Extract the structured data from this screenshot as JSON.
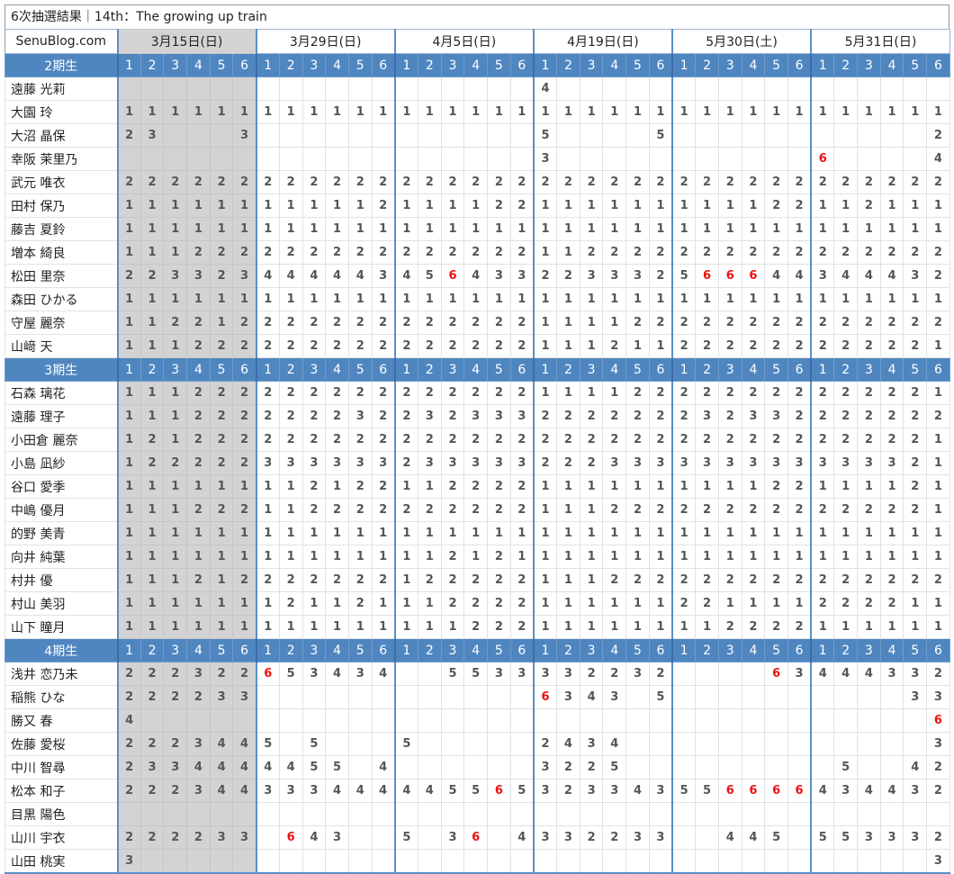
{
  "title": "6次抽選結果｜14th：The growing up train",
  "site": "SenuBlog.com",
  "slot_labels": [
    "1",
    "2",
    "3",
    "4",
    "5",
    "6"
  ],
  "dates": [
    "3月15日(日)",
    "3月29日(日)",
    "4月5日(日)",
    "4月19日(日)",
    "5月30日(土)",
    "5月31日(日)"
  ],
  "groups": [
    {
      "label": "2期生",
      "members": [
        {
          "name": "遠藤 光莉",
          "r": "------|------|------|4-----|------|------"
        },
        {
          "name": "大園 玲",
          "r": "111111|111111|111111|111111|111111|111111"
        },
        {
          "name": "大沼 晶保",
          "r": "23---3|------|------|5----5|------|-----2"
        },
        {
          "name": "幸阪 茉里乃",
          "r": "------|------|------|3-----|------|*6----4"
        },
        {
          "name": "武元 唯衣",
          "r": "222222|222222|222222|222222|222222|222222"
        },
        {
          "name": "田村 保乃",
          "r": "111111|111112|111122|111111|111122|112111"
        },
        {
          "name": "藤吉 夏鈴",
          "r": "111111|111111|111111|111111|111111|111111"
        },
        {
          "name": "増本 綺良",
          "r": "111222|222222|222222|112222|222222|222222"
        },
        {
          "name": "松田 里奈",
          "r": "223323|444443|45*6433|223332|5*6*6*644|344432"
        },
        {
          "name": "森田 ひかる",
          "r": "111111|111111|111111|111111|111111|111111"
        },
        {
          "name": "守屋 麗奈",
          "r": "112212|222222|222222|111122|222222|222222"
        },
        {
          "name": "山﨑 天",
          "r": "111222|222222|222222|111211|222222|222221"
        }
      ]
    },
    {
      "label": "3期生",
      "members": [
        {
          "name": "石森 璃花",
          "r": "111222|222222|222222|111122|222222|222221"
        },
        {
          "name": "遠藤 理子",
          "r": "111222|222232|232333|222222|232332|222222"
        },
        {
          "name": "小田倉 麗奈",
          "r": "121222|222222|222222|222222|222222|222221"
        },
        {
          "name": "小島 凪紗",
          "r": "122222|333333|233333|222333|333333|333321"
        },
        {
          "name": "谷口 愛季",
          "r": "111111|112122|112222|111111|111122|111121"
        },
        {
          "name": "中嶋 優月",
          "r": "111222|112222|222222|111222|222222|222221"
        },
        {
          "name": "的野 美青",
          "r": "111111|111111|111111|111111|111111|111111"
        },
        {
          "name": "向井 純葉",
          "r": "111111|111111|112121|111111|111111|111111"
        },
        {
          "name": "村井 優",
          "r": "111212|222222|122222|111222|222222|222222"
        },
        {
          "name": "村山 美羽",
          "r": "111111|121121|112222|111111|221111|222211"
        },
        {
          "name": "山下 瞳月",
          "r": "111111|111111|111222|111111|112222|111111"
        }
      ]
    },
    {
      "label": "4期生",
      "members": [
        {
          "name": "浅井 恋乃未",
          "r": "222322|*653434|--5533|332232|----*63|444332"
        },
        {
          "name": "稲熊 ひな",
          "r": "222233|------|------|*6343-5|------|----33"
        },
        {
          "name": "勝又 春",
          "r": "4-----|------|------|------|------|-----*6"
        },
        {
          "name": "佐藤 愛桜",
          "r": "222344|5-5---|5-----|2434--|------|-----3"
        },
        {
          "name": "中川 智尋",
          "r": "233444|4455-4|------|3225--|------|-5--42"
        },
        {
          "name": "松本 和子",
          "r": "222344|333444|4455*65|323343|55*6*6*6*6|434432"
        },
        {
          "name": "目黒 陽色",
          "r": "------|------|------|------|------|------"
        },
        {
          "name": "山川 宇衣",
          "r": "222233|-*643--|5-3*6-4|332233|--445-|553332"
        },
        {
          "name": "山田 桃実",
          "r": "3-----|------|------|------|------|-----3"
        }
      ]
    }
  ]
}
